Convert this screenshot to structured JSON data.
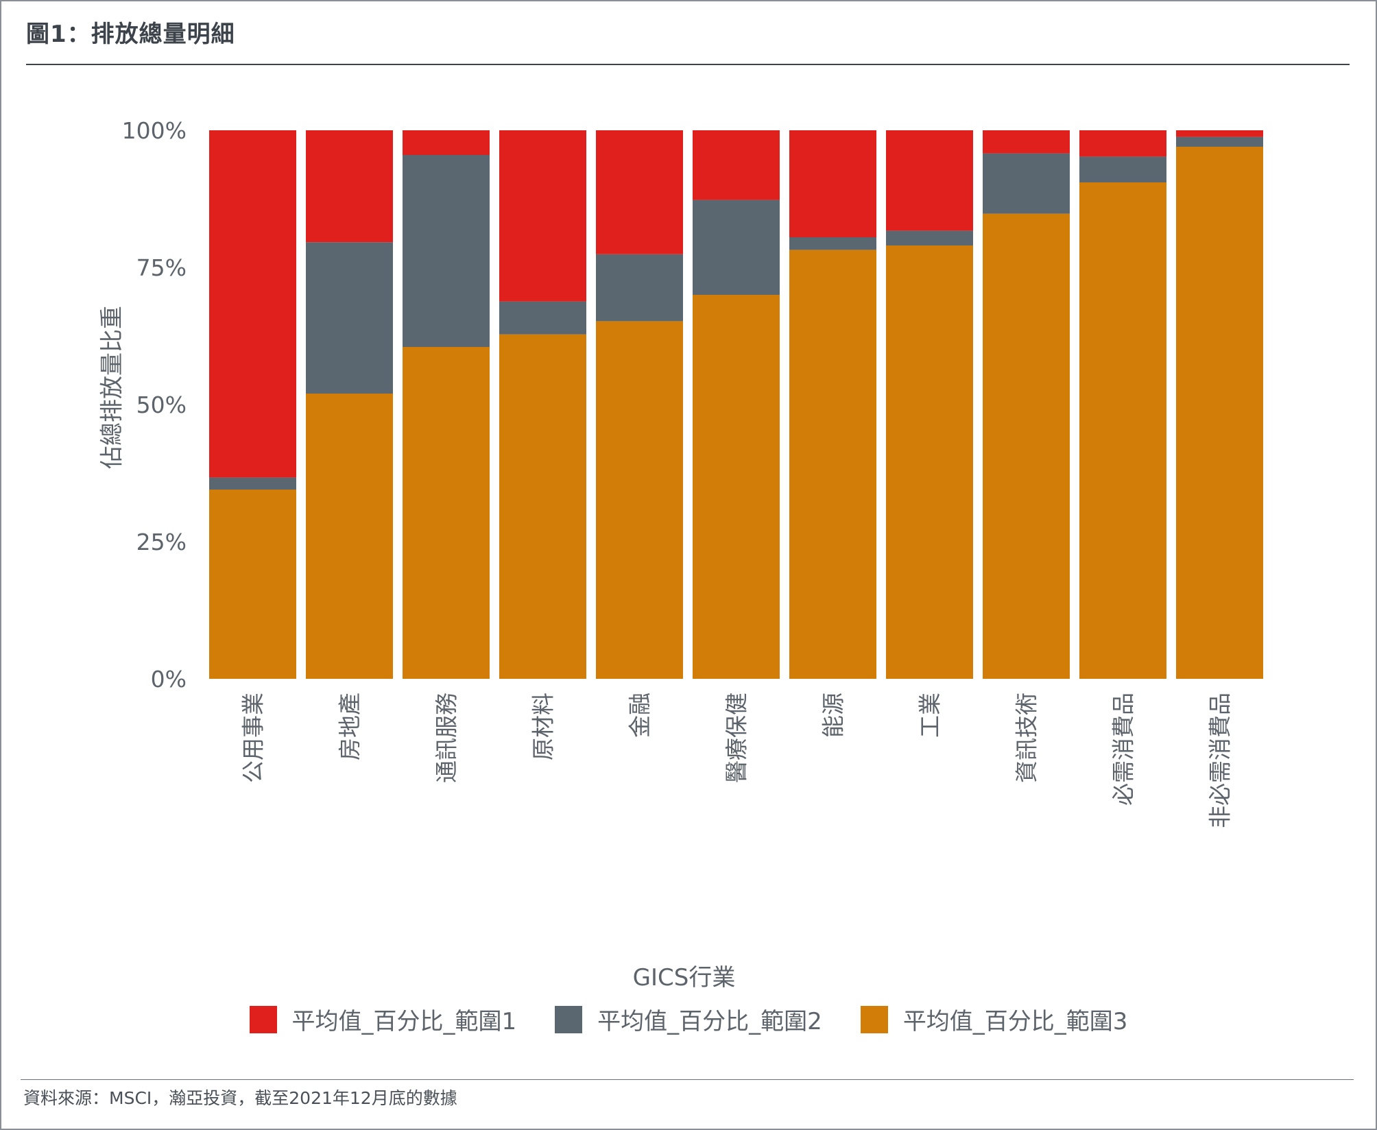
{
  "header": {
    "title": "圖1：排放總量明細"
  },
  "footer": {
    "source": "資料來源：MSCI，瀚亞投資，截至2021年12月底的數據"
  },
  "chart_data": {
    "type": "bar",
    "stacked": true,
    "normalized": true,
    "categories": [
      "公用事業",
      "房地產",
      "通訊服務",
      "原材料",
      "金融",
      "醫療保健",
      "能源",
      "工業",
      "資訊技術",
      "必需消費品",
      "非必需消費品"
    ],
    "series": [
      {
        "name": "平均值_百分比_範圍3",
        "color": "#d17d08",
        "values": [
          34.5,
          52.0,
          60.5,
          62.8,
          65.2,
          70.0,
          78.2,
          79.0,
          84.8,
          90.5,
          97.0
        ]
      },
      {
        "name": "平均值_百分比_範圍2",
        "color": "#5a6670",
        "values": [
          2.2,
          27.6,
          35.0,
          6.0,
          12.2,
          17.3,
          2.3,
          2.7,
          11.0,
          4.7,
          1.8
        ]
      },
      {
        "name": "平均值_百分比_範圍1",
        "color": "#e0201d",
        "values": [
          63.3,
          20.4,
          4.5,
          31.2,
          22.6,
          12.7,
          19.5,
          18.3,
          4.2,
          4.8,
          1.2
        ]
      }
    ],
    "legend_order": [
      "平均值_百分比_範圍1",
      "平均值_百分比_範圍2",
      "平均值_百分比_範圍3"
    ],
    "xlabel": "GICS行業",
    "ylabel": "佔總排放量比重",
    "ylim": [
      0,
      100
    ],
    "yticks": [
      "0%",
      "25%",
      "50%",
      "75%",
      "100%"
    ],
    "grid": false,
    "legend_position": "bottom"
  }
}
